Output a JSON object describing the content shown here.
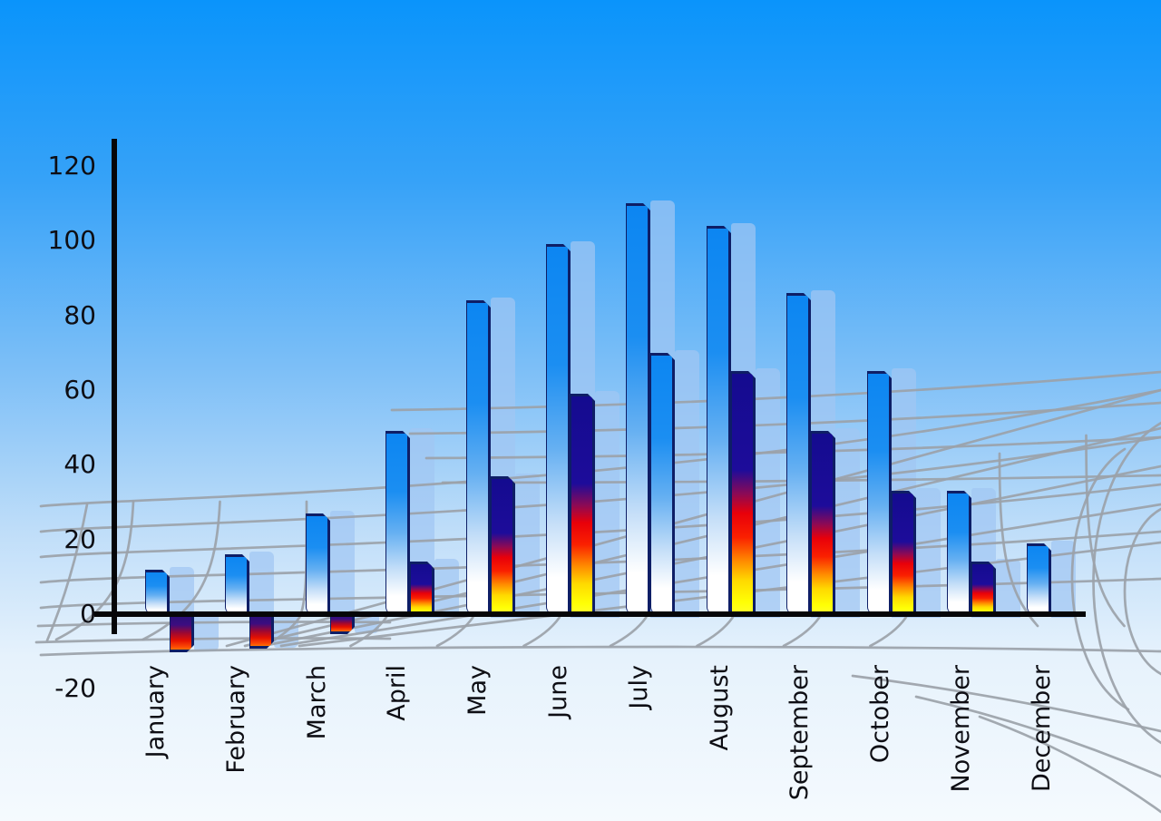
{
  "chart_data": {
    "type": "bar",
    "title": "",
    "xlabel": "",
    "ylabel": "",
    "categories": [
      "January",
      "February",
      "March",
      "April",
      "May",
      "June",
      "July",
      "August",
      "September",
      "October",
      "November",
      "December"
    ],
    "series": [
      {
        "name": "primary-blue-bars",
        "values": [
          12,
          16,
          27,
          49,
          84,
          99,
          110,
          104,
          86,
          65,
          33,
          19
        ]
      },
      {
        "name": "secondary-fire-bars",
        "values": [
          -10,
          -9,
          -5,
          14,
          37,
          59,
          70,
          65,
          49,
          33,
          14,
          null
        ]
      }
    ],
    "y_ticks": [
      120,
      100,
      80,
      60,
      40,
      20,
      0,
      -20
    ],
    "ylim": [
      -20,
      120
    ],
    "legend": "none",
    "grid": "decorative gray 3D perspective mesh behind bars",
    "style_notes": {
      "bar_effect": "each bar has a light-blue echo shadow offset one bar-width to the right",
      "secondary_july": "blue-white gradient instead of fire gradient",
      "negative_months": [
        "January",
        "February",
        "March"
      ]
    },
    "colors": {
      "sky_top": "#0a94fb",
      "sky_bottom": "#f5fafe",
      "bar_blue_top": "#0c86f2",
      "bar_blue_bottom": "#ffffff",
      "fire_navy": "#140b8f",
      "fire_red": "#e8000a",
      "fire_yellow": "#ffff05",
      "negative_red": "#e41000",
      "echo_shadow": "#a1c6f3",
      "bar_edge": "#0e1e66",
      "grid_gray": "#9ba2a9",
      "axis_black": "#060608",
      "label_text": "#0e0e14"
    }
  }
}
